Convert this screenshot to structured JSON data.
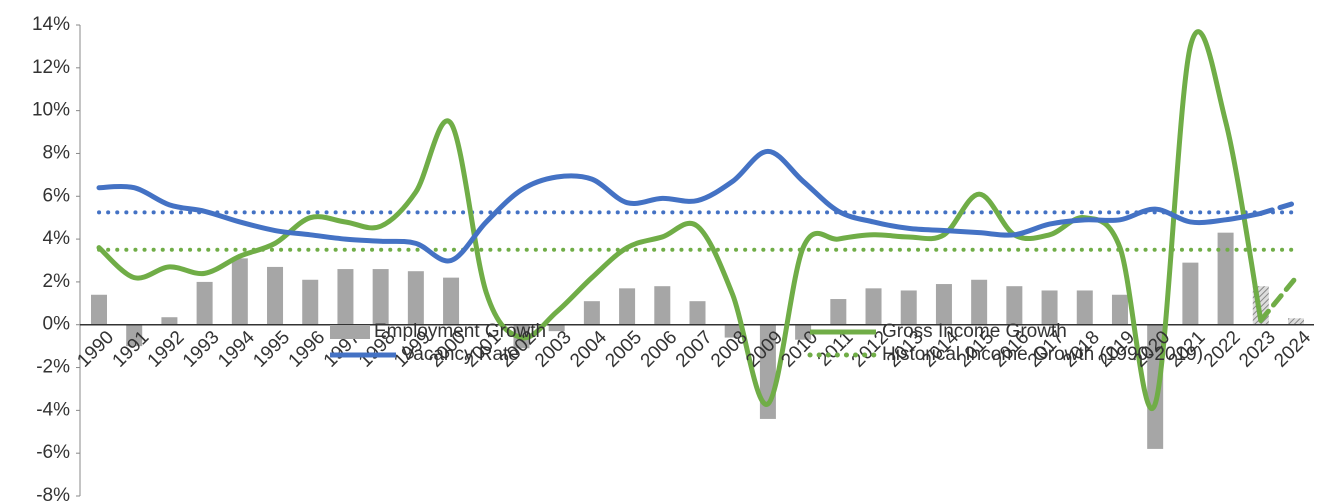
{
  "chart_data": {
    "type": "combo",
    "categories": [
      "1990",
      "1991",
      "1992",
      "1993",
      "1994",
      "1995",
      "1996",
      "1997",
      "1998",
      "1999",
      "2000",
      "2001",
      "2002",
      "2003",
      "2004",
      "2005",
      "2006",
      "2007",
      "2008",
      "2009",
      "2010",
      "2011",
      "2012",
      "2013",
      "2014",
      "2015",
      "2016",
      "2017",
      "2018",
      "2019",
      "2020",
      "2021",
      "2022",
      "2023",
      "2024"
    ],
    "forecast_categories": [
      "2023",
      "2024"
    ],
    "ylim": [
      -8,
      14
    ],
    "yticks": [
      {
        "value": -8,
        "label": "-8%"
      },
      {
        "value": -6,
        "label": "-6%"
      },
      {
        "value": -4,
        "label": "-4%"
      },
      {
        "value": -2,
        "label": "-2%"
      },
      {
        "value": 0,
        "label": "0%"
      },
      {
        "value": 2,
        "label": "2%"
      },
      {
        "value": 4,
        "label": "4%"
      },
      {
        "value": 6,
        "label": "6%"
      },
      {
        "value": 8,
        "label": "8%"
      },
      {
        "value": 10,
        "label": "10%"
      },
      {
        "value": 12,
        "label": "12%"
      },
      {
        "value": 14,
        "label": "14%"
      }
    ],
    "series": [
      {
        "name": "Employment Growth",
        "kind": "bar",
        "color": "#a6a6a6",
        "values": [
          1.4,
          -1.0,
          0.35,
          2.0,
          3.1,
          2.7,
          2.1,
          2.6,
          2.6,
          2.5,
          2.2,
          0.0,
          -1.1,
          -0.3,
          1.1,
          1.7,
          1.8,
          1.1,
          -0.6,
          -4.4,
          -0.7,
          1.2,
          1.7,
          1.6,
          1.9,
          2.1,
          1.8,
          1.6,
          1.6,
          1.4,
          -5.8,
          2.9,
          4.3,
          1.8,
          0.3
        ]
      },
      {
        "name": "Gross Income Growth",
        "kind": "line",
        "color": "#70ad47",
        "values": [
          3.6,
          2.2,
          2.7,
          2.4,
          3.2,
          3.8,
          5.0,
          4.8,
          4.6,
          6.2,
          9.4,
          1.5,
          -0.6,
          0.6,
          2.2,
          3.6,
          4.1,
          4.6,
          1.4,
          -3.7,
          3.6,
          4.0,
          4.2,
          4.1,
          4.2,
          6.1,
          4.2,
          4.2,
          5.0,
          3.6,
          -3.7,
          13.0,
          9.5,
          0.2,
          2.2
        ]
      },
      {
        "name": "Vacancy Rate",
        "kind": "line",
        "color": "#4472c4",
        "values": [
          6.4,
          6.4,
          5.6,
          5.3,
          4.8,
          4.4,
          4.2,
          4.0,
          3.9,
          3.8,
          3.0,
          4.8,
          6.3,
          6.9,
          6.8,
          5.7,
          5.9,
          5.8,
          6.7,
          8.1,
          6.7,
          5.3,
          4.8,
          4.5,
          4.4,
          4.3,
          4.2,
          4.7,
          4.9,
          4.9,
          5.4,
          4.8,
          4.9,
          5.2,
          5.7
        ]
      },
      {
        "name": "Historical Income Growth (1990-2019)",
        "kind": "reference",
        "color": "#70ad47",
        "value": 3.5
      }
    ],
    "reference_lines": [
      {
        "color": "#4472c4",
        "value": 5.25
      }
    ]
  }
}
